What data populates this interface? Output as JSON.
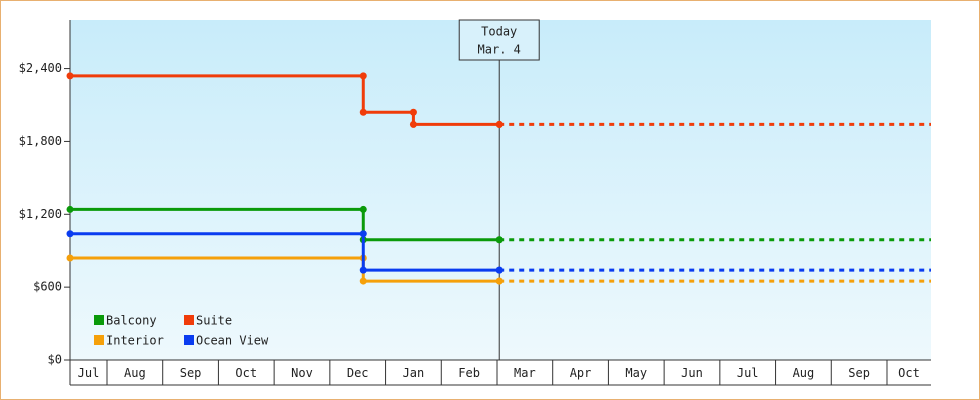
{
  "chart_data": {
    "type": "step-line",
    "annotation": {
      "title": "Today",
      "label": "Mar. 4",
      "x": 8.04
    },
    "categories": [
      "Jul",
      "Aug",
      "Sep",
      "Oct",
      "Nov",
      "Dec",
      "Jan",
      "Feb",
      "Mar",
      "Apr",
      "May",
      "Jun",
      "Jul",
      "Aug",
      "Sep",
      "Oct"
    ],
    "xlim": [
      0.336,
      15.79
    ],
    "xticks": [
      1,
      2,
      3,
      4,
      5,
      6,
      7,
      8,
      9,
      10,
      11,
      12,
      13,
      14,
      15
    ],
    "ylim": [
      0,
      2800
    ],
    "yticks": [
      {
        "value": 0,
        "label": "$0"
      },
      {
        "value": 600,
        "label": "$600"
      },
      {
        "value": 1200,
        "label": "$1,200"
      },
      {
        "value": 1800,
        "label": "$1,800"
      },
      {
        "value": 2400,
        "label": "$2,400"
      }
    ],
    "legend": "bottom-left",
    "series": [
      {
        "name": "Balcony",
        "color": "#0a9a0a",
        "x": [
          0.336,
          5.6,
          8.04
        ],
        "values": [
          1240,
          990,
          990
        ]
      },
      {
        "name": "Suite",
        "color": "#f03c0a",
        "x": [
          0.336,
          5.6,
          6.5,
          8.04
        ],
        "values": [
          2340,
          2040,
          1940,
          1940
        ]
      },
      {
        "name": "Interior",
        "color": "#f5a00a",
        "x": [
          0.336,
          5.6,
          8.04
        ],
        "values": [
          840,
          650,
          650
        ]
      },
      {
        "name": "Ocean View",
        "color": "#0a3cf0",
        "x": [
          0.336,
          5.6,
          8.04
        ],
        "values": [
          1040,
          740,
          740
        ]
      }
    ]
  }
}
